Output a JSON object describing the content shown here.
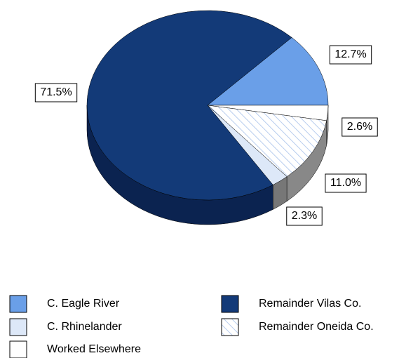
{
  "chart_data": {
    "type": "pie",
    "categories": [
      "C. Eagle River",
      "Worked Elsewhere",
      "Remainder Oneida Co.",
      "C. Rhinelander",
      "Remainder Vilas Co."
    ],
    "values": [
      12.7,
      2.6,
      11.0,
      2.3,
      71.5
    ],
    "value_labels": [
      "12.7%",
      "2.6%",
      "11.0%",
      "2.3%",
      "71.5%"
    ],
    "colors": [
      "#6a9fe8",
      "#ffffff",
      "hatch",
      "#dde8f8",
      "#133a78"
    ],
    "three_d": true
  }
}
